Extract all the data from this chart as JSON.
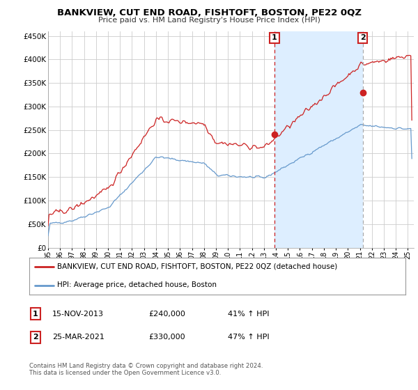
{
  "title": "BANKVIEW, CUT END ROAD, FISHTOFT, BOSTON, PE22 0QZ",
  "subtitle": "Price paid vs. HM Land Registry's House Price Index (HPI)",
  "ylabel_ticks": [
    "£0",
    "£50K",
    "£100K",
    "£150K",
    "£200K",
    "£250K",
    "£300K",
    "£350K",
    "£400K",
    "£450K"
  ],
  "ytick_values": [
    0,
    50000,
    100000,
    150000,
    200000,
    250000,
    300000,
    350000,
    400000,
    450000
  ],
  "ylim": [
    0,
    460000
  ],
  "xlim_start": 1995.0,
  "xlim_end": 2025.5,
  "red_line_color": "#cc2222",
  "blue_line_color": "#6699cc",
  "shade_color": "#ddeeff",
  "vline1_color": "#cc2222",
  "vline2_color": "#aaaaaa",
  "background_color": "#ffffff",
  "grid_color": "#cccccc",
  "marker1_year": 2013.88,
  "marker2_year": 2021.23,
  "marker1_price": 240000,
  "marker2_price": 330000,
  "legend_red_label": "BANKVIEW, CUT END ROAD, FISHTOFT, BOSTON, PE22 0QZ (detached house)",
  "legend_blue_label": "HPI: Average price, detached house, Boston",
  "table_row1": [
    "1",
    "15-NOV-2013",
    "£240,000",
    "41% ↑ HPI"
  ],
  "table_row2": [
    "2",
    "25-MAR-2021",
    "£330,000",
    "47% ↑ HPI"
  ],
  "footnote": "Contains HM Land Registry data © Crown copyright and database right 2024.\nThis data is licensed under the Open Government Licence v3.0.",
  "xtick_years": [
    1995,
    1996,
    1997,
    1998,
    1999,
    2000,
    2001,
    2002,
    2003,
    2004,
    2005,
    2006,
    2007,
    2008,
    2009,
    2010,
    2011,
    2012,
    2013,
    2014,
    2015,
    2016,
    2017,
    2018,
    2019,
    2020,
    2021,
    2022,
    2023,
    2024,
    2025
  ]
}
